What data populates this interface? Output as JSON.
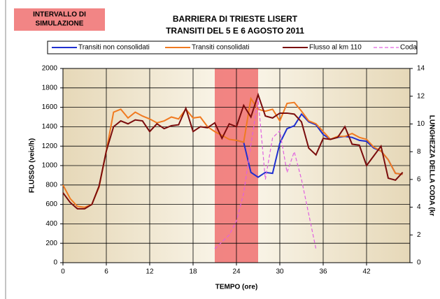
{
  "chart_data": {
    "type": "line",
    "title": [
      "BARRIERA DI TRIESTE LISERT",
      "TRANSITI DEL 5 E 6 AGOSTO 2011"
    ],
    "xlabel": "TEMPO (ore)",
    "ylabel": "FLUSSO (veic/h)",
    "y2label": "LUNGHEZZA DELLA CODA (kr",
    "highlight": {
      "label": [
        "INTERVALLO DI",
        "SIMULAZIONE"
      ],
      "x": [
        21,
        27
      ],
      "color": "#f07070"
    },
    "x": [
      0,
      1,
      2,
      3,
      4,
      5,
      6,
      7,
      8,
      9,
      10,
      11,
      12,
      13,
      14,
      15,
      16,
      17,
      18,
      19,
      20,
      21,
      22,
      23,
      24,
      25,
      26,
      27,
      28,
      29,
      30,
      31,
      32,
      33,
      34,
      35,
      36,
      37,
      38,
      39,
      40,
      41,
      42,
      43,
      44,
      45,
      46,
      47
    ],
    "xlim": [
      0,
      48
    ],
    "xticks": [
      0,
      6,
      12,
      18,
      24,
      30,
      36,
      42
    ],
    "ylim": [
      0,
      2000
    ],
    "yticks": [
      0,
      200,
      400,
      600,
      800,
      1000,
      1200,
      1400,
      1600,
      1800,
      2000
    ],
    "y2lim": [
      0,
      14
    ],
    "y2ticks": [
      0,
      2,
      4,
      6,
      8,
      10,
      12,
      14
    ],
    "grid": true,
    "series": [
      {
        "name": "Transiti non consolidati",
        "color": "#1f2fd0",
        "values": [
          null,
          null,
          null,
          null,
          null,
          null,
          null,
          null,
          null,
          null,
          null,
          null,
          null,
          null,
          null,
          null,
          null,
          null,
          null,
          null,
          null,
          null,
          null,
          null,
          1260,
          1240,
          930,
          880,
          930,
          920,
          1230,
          1380,
          1410,
          1530,
          1450,
          1420,
          1320,
          1270,
          1290,
          1300,
          1290,
          1260,
          1250,
          1180,
          1150,
          1060,
          920,
          910
        ]
      },
      {
        "name": "Transiti consolidati",
        "color": "#f07a20",
        "values": [
          800,
          660,
          580,
          570,
          600,
          780,
          1150,
          1550,
          1580,
          1490,
          1550,
          1510,
          1480,
          1440,
          1460,
          1500,
          1480,
          1580,
          1490,
          1500,
          1400,
          1350,
          1310,
          1270,
          1260,
          1240,
          1690,
          1580,
          1560,
          1580,
          1460,
          1640,
          1650,
          1560,
          1460,
          1430,
          1350,
          1270,
          1300,
          1300,
          1330,
          1290,
          1270,
          1190,
          1150,
          1060,
          920,
          910
        ]
      },
      {
        "name": "Flusso al km 110",
        "color": "#7a0c0c",
        "values": [
          720,
          620,
          555,
          555,
          600,
          790,
          1150,
          1400,
          1460,
          1430,
          1470,
          1460,
          1350,
          1430,
          1380,
          1410,
          1420,
          1590,
          1350,
          1400,
          1390,
          1440,
          1280,
          1430,
          1400,
          1620,
          1500,
          1730,
          1510,
          1490,
          1540,
          1540,
          1530,
          1450,
          1180,
          1110,
          1280,
          1270,
          1290,
          1400,
          1220,
          1210,
          1000,
          1100,
          1200,
          870,
          850,
          930
        ]
      },
      {
        "name": "Coda",
        "color": "#e060e0",
        "axis": "y2",
        "dashed": true,
        "values": [
          null,
          null,
          null,
          null,
          null,
          null,
          null,
          null,
          null,
          null,
          null,
          null,
          null,
          null,
          null,
          null,
          null,
          null,
          null,
          null,
          null,
          1.0,
          1.5,
          2.0,
          3.0,
          5.0,
          8.5,
          11.8,
          6.0,
          9.0,
          9.5,
          6.5,
          8.0,
          6.0,
          3.5,
          1.0,
          null,
          null,
          null,
          null,
          null,
          null,
          null,
          null,
          null,
          null,
          null,
          null
        ]
      }
    ]
  }
}
